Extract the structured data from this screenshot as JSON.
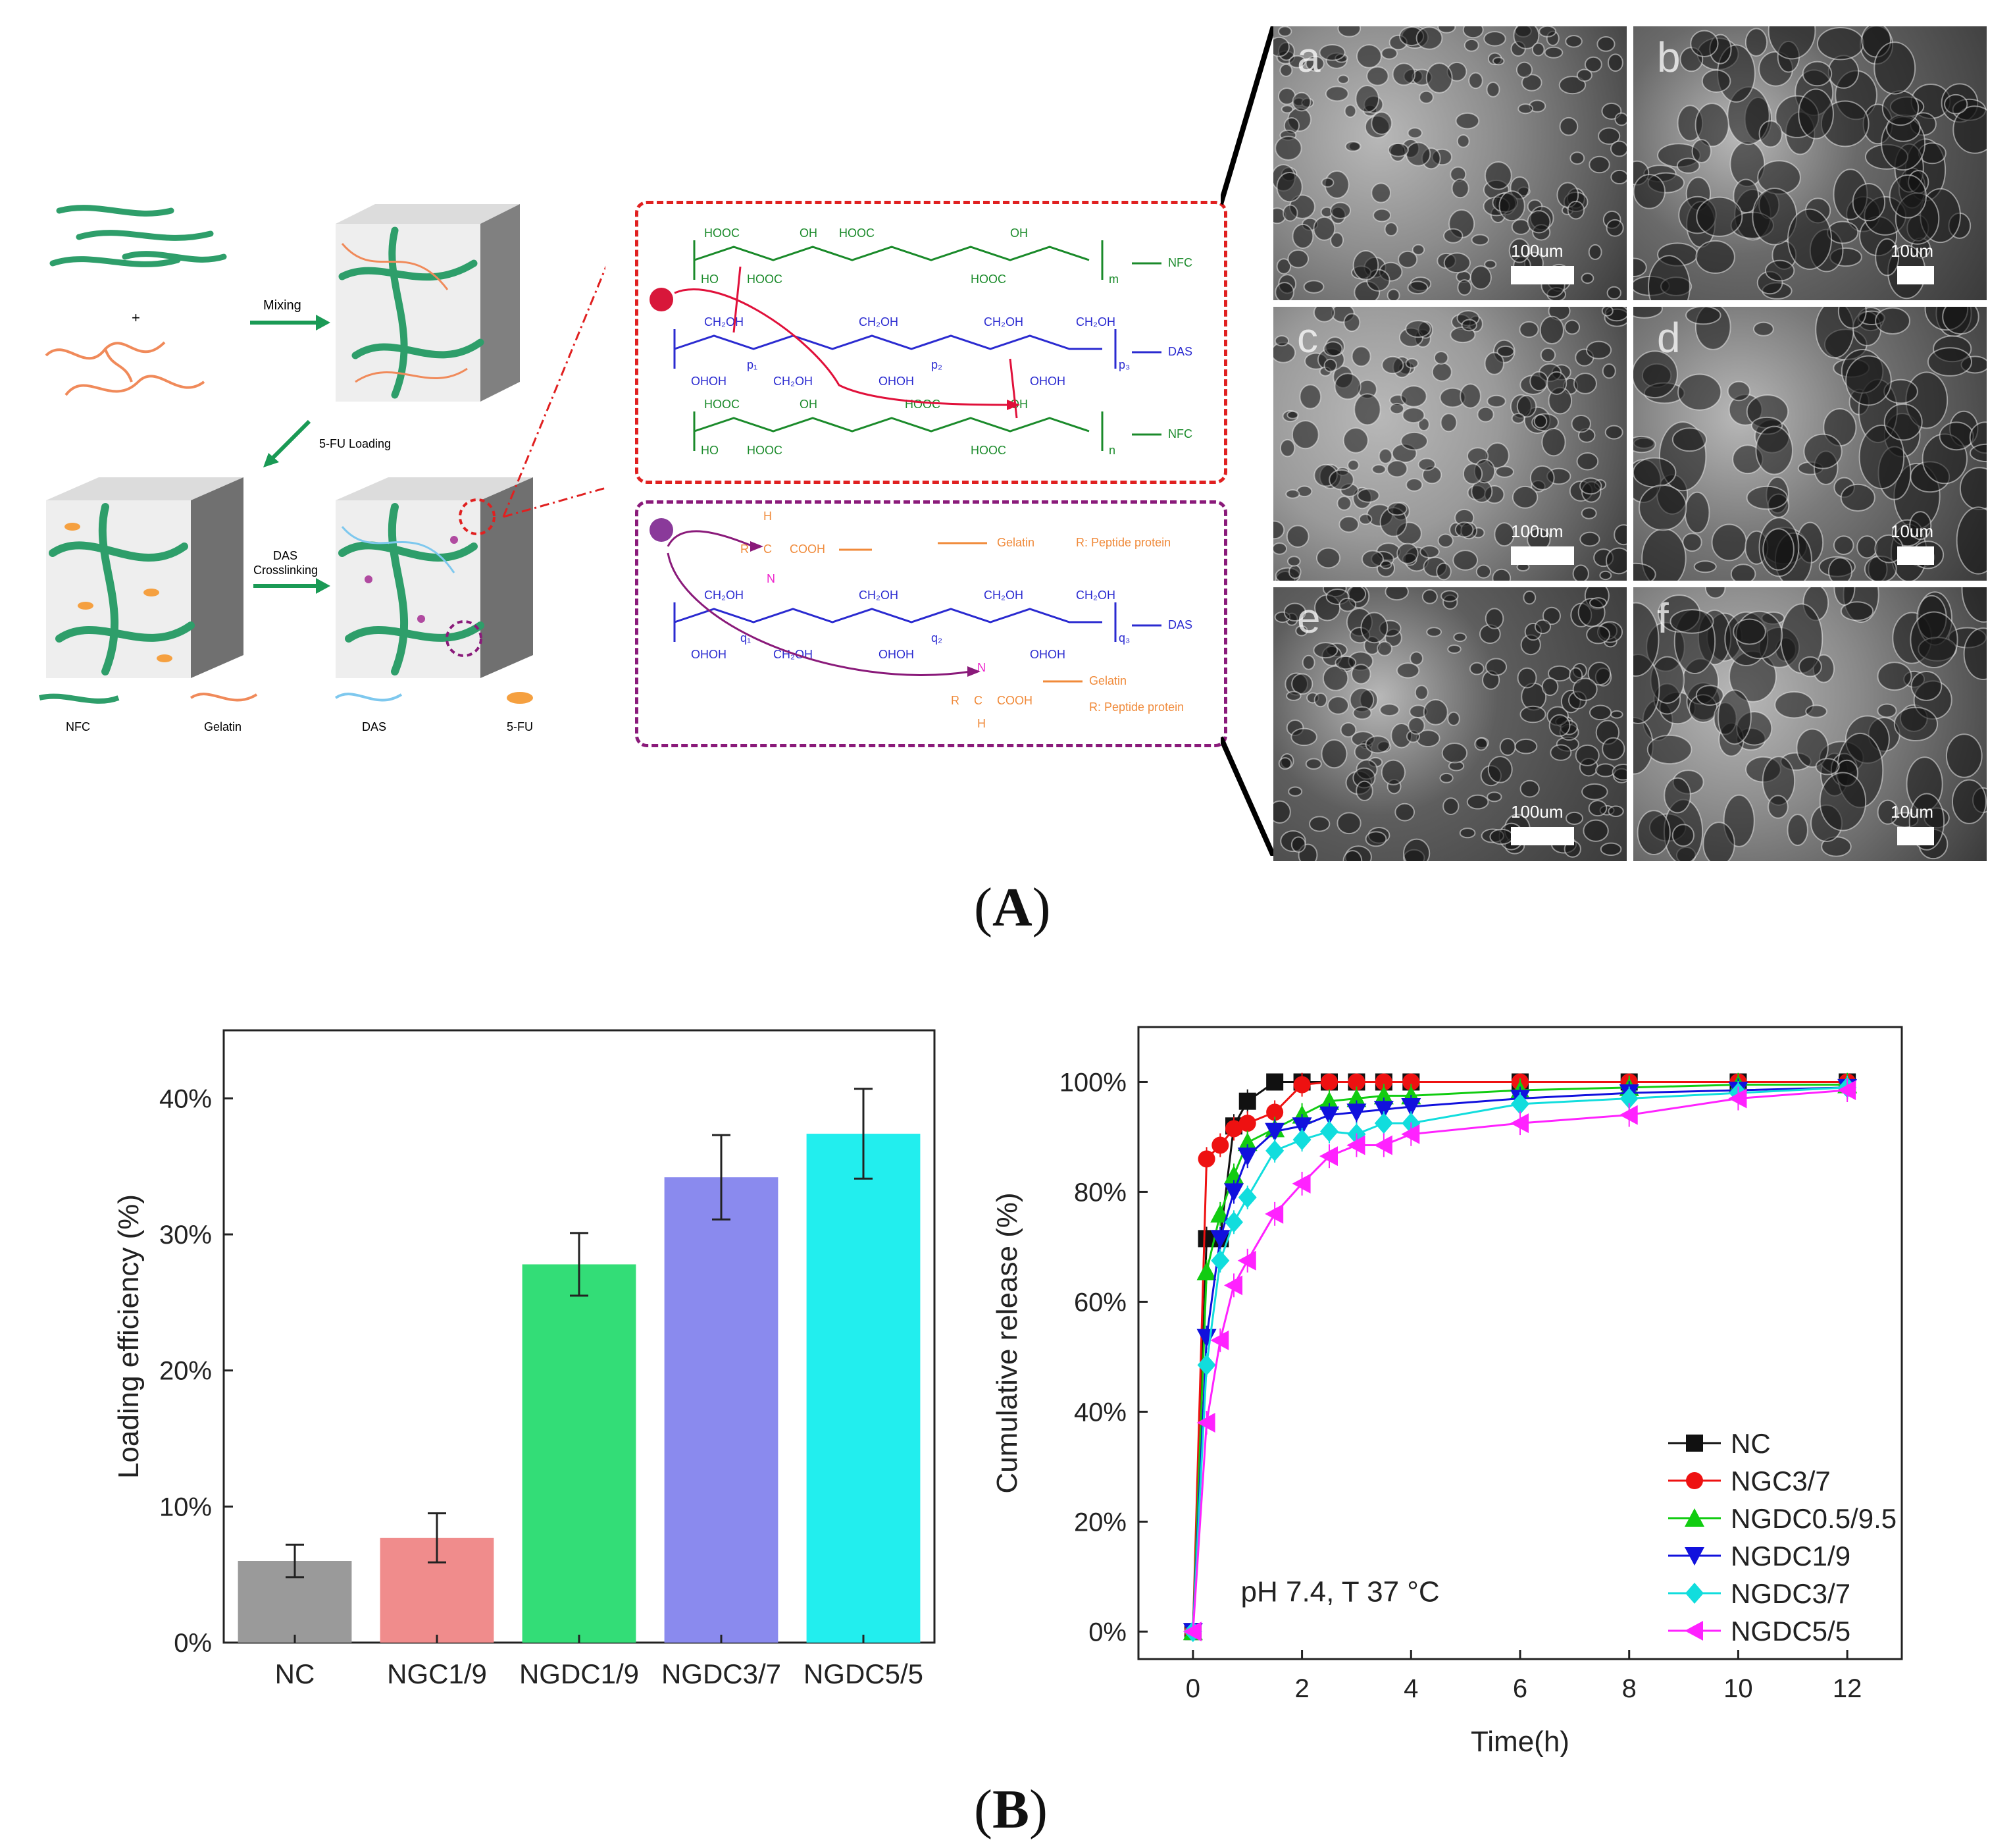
{
  "panel_a": {
    "letter": "A",
    "schematic": {
      "plus": "+",
      "steps": {
        "mixing": "Mixing",
        "loading": "5-FU Loading",
        "crosslinking_1": "DAS",
        "crosslinking_2": "Crosslinking"
      },
      "legend": [
        "NFC",
        "Gelatin",
        "DAS",
        "5-FU"
      ]
    },
    "chem_red": {
      "nfc_label_top": "NFC",
      "das_label": "DAS",
      "nfc_label_bottom": "NFC",
      "groups": [
        "HOOC",
        "HO",
        "OH",
        "HOOC",
        "CH₂OH",
        "OHOH",
        "O"
      ],
      "subscripts": [
        "m",
        "p₁",
        "p₂",
        "p₃",
        "n"
      ]
    },
    "chem_purple": {
      "gelatin_top": "Gelatin",
      "peptide_top": "R: Peptide protein",
      "das_label": "DAS",
      "gelatin_bottom": "Gelatin",
      "peptide_bottom": "R: Peptide protein",
      "groups": [
        "R",
        "C",
        "COOH",
        "H",
        "N",
        "CH₂OH",
        "OHOH",
        "O"
      ],
      "subscripts": [
        "q₁",
        "q₂",
        "q₃"
      ]
    },
    "sem_images": [
      {
        "tag": "a",
        "scale": "100um"
      },
      {
        "tag": "b",
        "scale": "10um"
      },
      {
        "tag": "c",
        "scale": "100um"
      },
      {
        "tag": "d",
        "scale": "10um"
      },
      {
        "tag": "e",
        "scale": "100um"
      },
      {
        "tag": "f",
        "scale": "10um"
      }
    ]
  },
  "panel_b": {
    "letter": "B"
  },
  "chart_data": [
    {
      "type": "bar",
      "title": "",
      "xlabel": "",
      "ylabel": "Loading efficiency (%)",
      "categories": [
        "NC",
        "NGC1/9",
        "NGDC1/9",
        "NGDC3/7",
        "NGDC5/5"
      ],
      "values": [
        6.0,
        7.7,
        27.8,
        34.2,
        37.4
      ],
      "errors": [
        1.2,
        1.8,
        2.3,
        3.1,
        3.3
      ],
      "colors": [
        "#9a9a9a",
        "#f08c8c",
        "#33dd77",
        "#8a8aee",
        "#22eeee"
      ],
      "ylim": [
        0,
        45
      ],
      "yticks": [
        "0%",
        "10%",
        "20%",
        "30%",
        "40%"
      ]
    },
    {
      "type": "line",
      "title": "",
      "xlabel": "Time(h)",
      "ylabel": "Cumulative release (%)",
      "annotation": "pH 7.4, T 37 °C",
      "xlim": [
        -1,
        13
      ],
      "ylim": [
        -5,
        110
      ],
      "xticks": [
        "0",
        "2",
        "4",
        "6",
        "8",
        "10",
        "12"
      ],
      "yticks": [
        "0%",
        "20%",
        "40%",
        "60%",
        "80%",
        "100%"
      ],
      "legend_position": "bottom-right",
      "series": [
        {
          "name": "NC",
          "color": "#111111",
          "marker": "square",
          "x": [
            0,
            0.25,
            0.5,
            0.75,
            1,
            1.5,
            2,
            2.5,
            3,
            3.5,
            4,
            6,
            8,
            10,
            12
          ],
          "y": [
            0,
            71.5,
            71.5,
            92,
            96.5,
            100,
            100,
            100,
            100,
            100,
            100,
            100,
            100,
            100,
            100
          ]
        },
        {
          "name": "NGC3/7",
          "color": "#ee1111",
          "marker": "circle",
          "x": [
            0,
            0.25,
            0.5,
            0.75,
            1,
            1.5,
            2,
            2.5,
            3,
            3.5,
            4,
            6,
            8,
            10,
            12
          ],
          "y": [
            0,
            86,
            88.5,
            91.5,
            92.5,
            94.5,
            99.5,
            100,
            100,
            100,
            100,
            100,
            100,
            100,
            100
          ]
        },
        {
          "name": "NGDC0.5/9.5",
          "color": "#11cc11",
          "marker": "triangle-up",
          "x": [
            0,
            0.25,
            0.5,
            0.75,
            1,
            1.5,
            2,
            2.5,
            3,
            3.5,
            4,
            6,
            8,
            10,
            12
          ],
          "y": [
            0,
            65.5,
            76,
            83,
            89,
            91.5,
            94,
            96.5,
            97,
            97.5,
            97.5,
            98.5,
            99,
            99.5,
            99.5
          ]
        },
        {
          "name": "NGDC1/9",
          "color": "#1111dd",
          "marker": "triangle-down",
          "x": [
            0,
            0.25,
            0.5,
            0.75,
            1,
            1.5,
            2,
            2.5,
            3,
            3.5,
            4,
            6,
            8,
            10,
            12
          ],
          "y": [
            0,
            53.5,
            71.5,
            80,
            86.5,
            91,
            92,
            94,
            94.5,
            95,
            95.5,
            97,
            98,
            98.5,
            99
          ]
        },
        {
          "name": "NGDC3/7",
          "color": "#11dddd",
          "marker": "diamond",
          "x": [
            0,
            0.25,
            0.5,
            0.75,
            1,
            1.5,
            2,
            2.5,
            3,
            3.5,
            4,
            6,
            8,
            10,
            12
          ],
          "y": [
            0,
            48.5,
            67.5,
            74.5,
            79,
            87.5,
            89.5,
            91,
            90.5,
            92.5,
            92.5,
            96,
            97,
            98,
            99
          ]
        },
        {
          "name": "NGDC5/5",
          "color": "#ff22ff",
          "marker": "triangle-left",
          "x": [
            0,
            0.25,
            0.5,
            0.75,
            1,
            1.5,
            2,
            2.5,
            3,
            3.5,
            4,
            6,
            8,
            10,
            12
          ],
          "y": [
            0,
            38,
            53,
            63,
            67.5,
            76,
            81.5,
            86.5,
            88.5,
            88.5,
            90.5,
            92.5,
            94,
            97,
            98.5
          ]
        }
      ]
    }
  ]
}
